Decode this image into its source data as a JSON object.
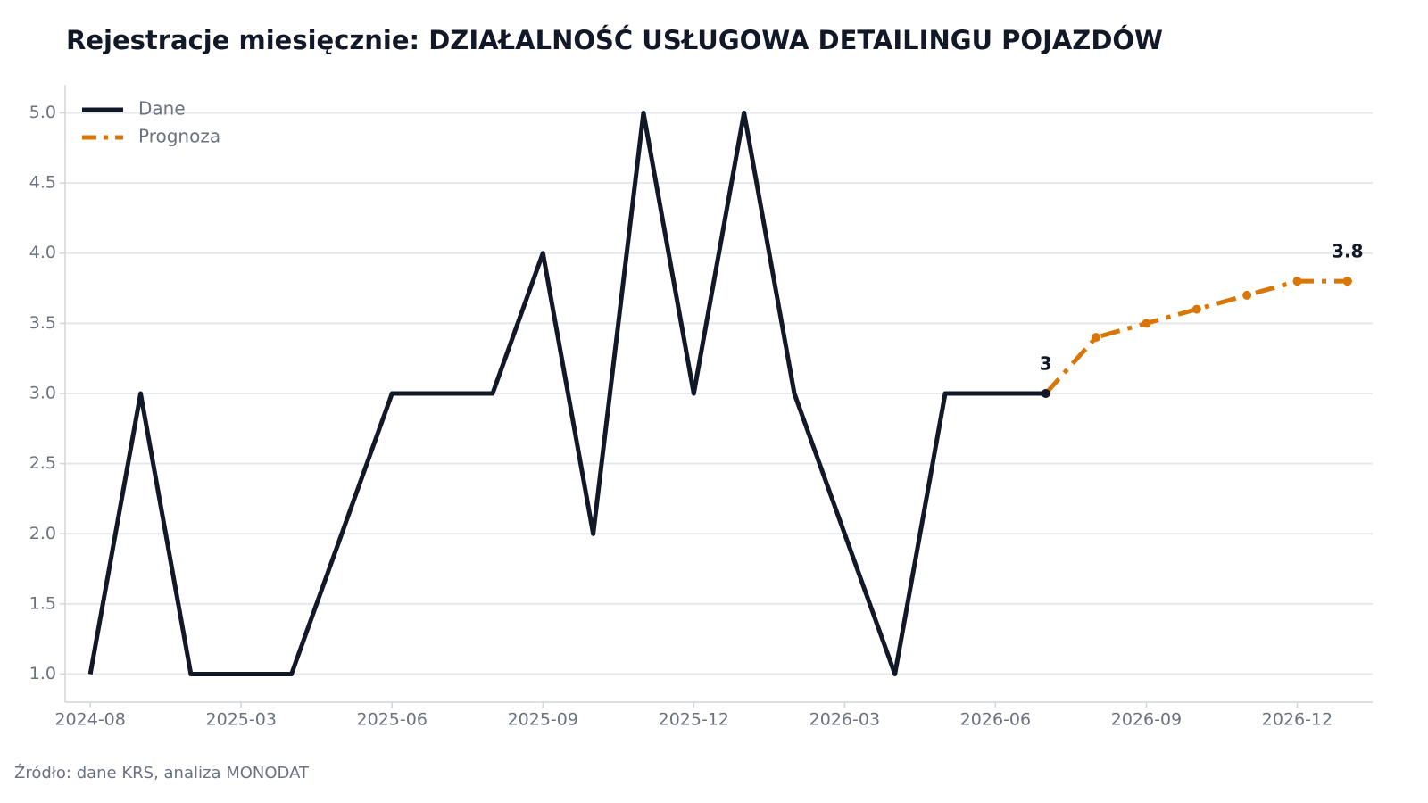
{
  "chart_data": {
    "type": "line",
    "title": "Rejestracje miesięcznie: DZIAŁALNOŚĆ USŁUGOWA DETAILINGU POJAZDÓW",
    "source": "Źródło: dane KRS, analiza MONODAT",
    "categories": [
      "2024-08",
      null,
      null,
      "2025-03",
      null,
      null,
      "2025-06",
      null,
      null,
      "2025-09",
      null,
      null,
      "2025-12",
      null,
      null,
      "2026-03",
      null,
      null,
      "2026-06",
      null,
      null,
      "2026-09",
      null,
      null,
      "2026-12",
      null
    ],
    "series": [
      {
        "name": "Dane",
        "color": "#111827",
        "dash": "solid",
        "markers": false,
        "label_last": true,
        "values": [
          1,
          3,
          1,
          1,
          1,
          2,
          3,
          3,
          3,
          4,
          2,
          5,
          3,
          5,
          3,
          2,
          1,
          3,
          3,
          3,
          null,
          null,
          null,
          null,
          null,
          null
        ]
      },
      {
        "name": "Prognoza",
        "color": "#d97706",
        "dash": "dashdot",
        "markers": true,
        "label_last": true,
        "values": [
          null,
          null,
          null,
          null,
          null,
          null,
          null,
          null,
          null,
          null,
          null,
          null,
          null,
          null,
          null,
          null,
          null,
          null,
          null,
          3,
          3.4,
          3.5,
          3.6,
          3.7,
          3.8,
          3.8
        ]
      }
    ],
    "ylim": [
      0.8,
      5.2
    ],
    "yticks": [
      {
        "value": 1,
        "label": "1.0"
      },
      1.5,
      {
        "value": 2,
        "label": "2.0"
      },
      2.5,
      {
        "value": 3,
        "label": "3.0"
      },
      3.5,
      {
        "value": 4,
        "label": "4.0"
      },
      4.5,
      {
        "value": 5,
        "label": "5.0"
      }
    ],
    "grid": true,
    "legend": "upper-left"
  }
}
